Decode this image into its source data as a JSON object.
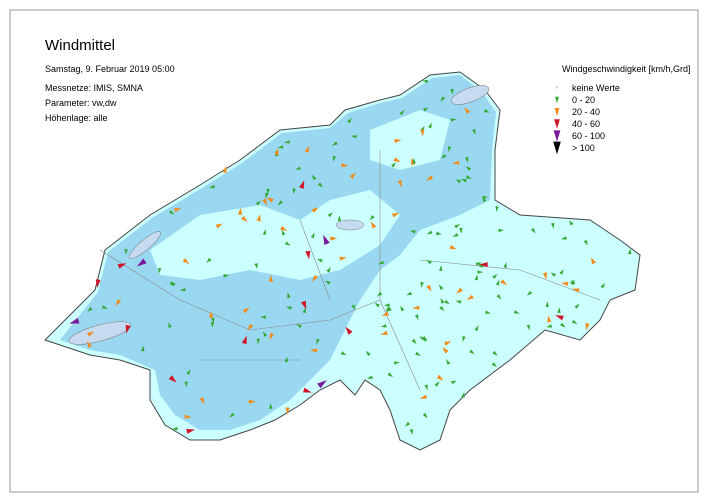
{
  "header": {
    "title": "Windmittel",
    "date": "Samstag, 9. Februar 2019 05:00",
    "lines": [
      "Messnetze: IMIS, SMNA",
      "Parameter: vw,dw",
      "Höhenlage: alle"
    ]
  },
  "legend": {
    "title": "Windgeschwindigkeit [km/h,Grd]",
    "items": [
      {
        "label": "keine Werte",
        "color": "#9acd9a",
        "size": 2
      },
      {
        "label": "0 - 20",
        "color": "#33a833",
        "size": 4
      },
      {
        "label": "20 - 40",
        "color": "#f08c1e",
        "size": 5
      },
      {
        "label": "40 - 60",
        "color": "#d0142a",
        "size": 6
      },
      {
        "label": "60 - 100",
        "color": "#7a1a9a",
        "size": 7
      },
      {
        "label": "> 100",
        "color": "#000000",
        "size": 8
      }
    ]
  }
}
